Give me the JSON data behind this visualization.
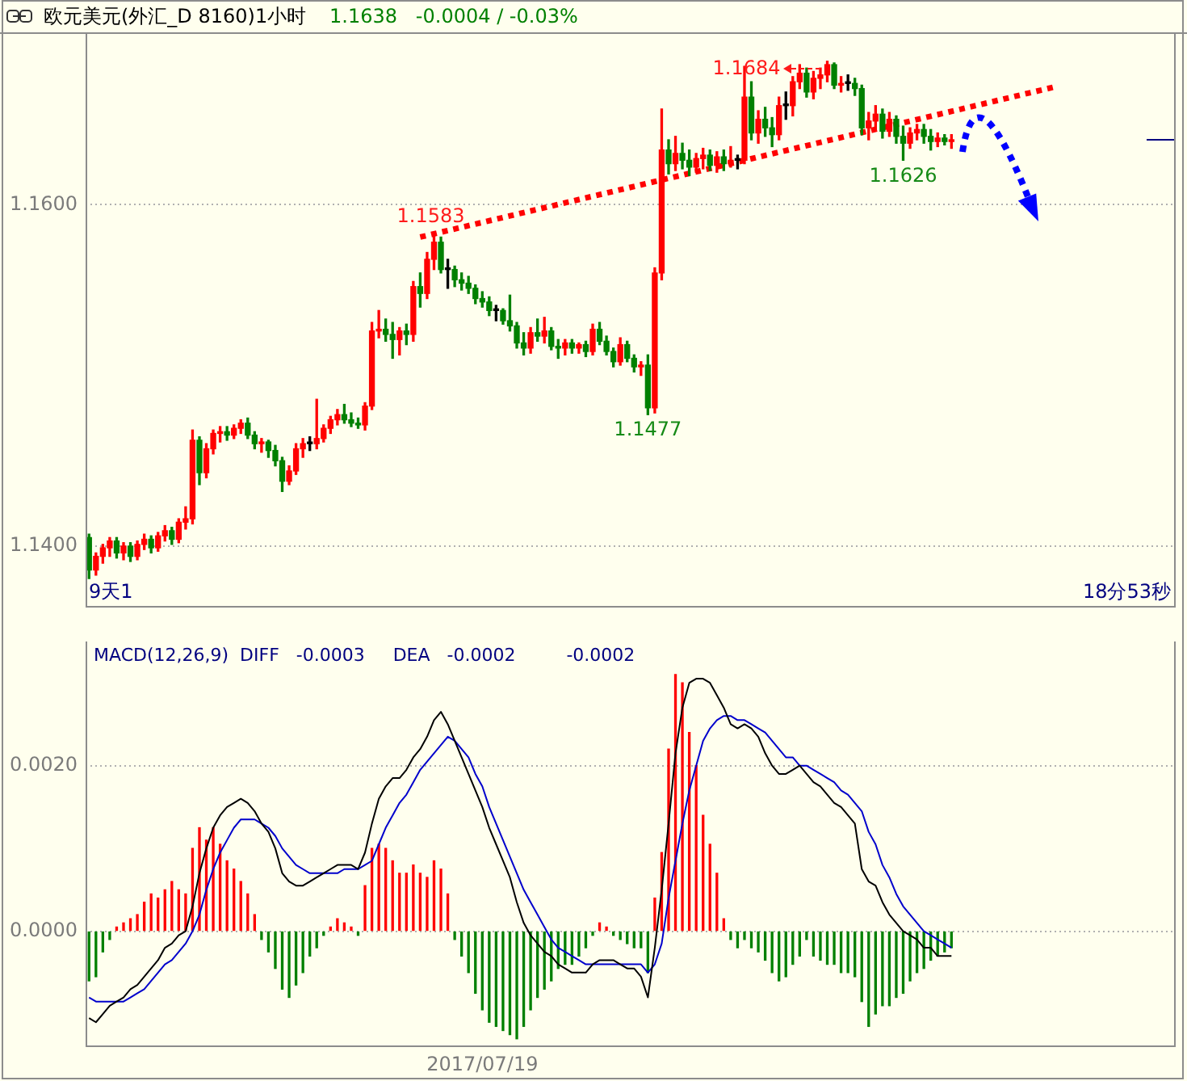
{
  "chart_data": [
    {
      "type": "candlestick",
      "title": "欧元美元(外汇_D 8160)1小时",
      "subtitle": "1.1638   -0.0004 / -0.03%",
      "categories": [
        null,
        null,
        null,
        null,
        null,
        null,
        null,
        null,
        null,
        null,
        null,
        null,
        null,
        null,
        null,
        null,
        null,
        null,
        null,
        null,
        null,
        null,
        null,
        null,
        null,
        null,
        null,
        null,
        null,
        null,
        null,
        null,
        null,
        null,
        null,
        null,
        null,
        null,
        null,
        null,
        null,
        null,
        null,
        null,
        null,
        null,
        null,
        null,
        null,
        null,
        null,
        null,
        null,
        null,
        null,
        null,
        null,
        null,
        null,
        null,
        null,
        null,
        null,
        null,
        null,
        null,
        null,
        null,
        null,
        null,
        null,
        null,
        null,
        null,
        null,
        null,
        null,
        null,
        null,
        null,
        null,
        null,
        null,
        null,
        null,
        null,
        null,
        null,
        null,
        null,
        null,
        null,
        null,
        null,
        null,
        null,
        null,
        null,
        null,
        null,
        null,
        null,
        null,
        null,
        null,
        null,
        null,
        null,
        null,
        null,
        null,
        null,
        null,
        null,
        null,
        null,
        null,
        null,
        null,
        null,
        null,
        null,
        null,
        null,
        null,
        null,
        null,
        null,
        null,
        null,
        null,
        null,
        null,
        null,
        null,
        null,
        null,
        null,
        null,
        null,
        null,
        null,
        null,
        null,
        null,
        null,
        null,
        null,
        null,
        null,
        null,
        null,
        null,
        null,
        null,
        null,
        null,
        null
      ],
      "ohlc": [
        [
          1.1405,
          1.1407,
          1.1381,
          1.1386
        ],
        [
          1.1386,
          1.1396,
          1.1383,
          1.1394
        ],
        [
          1.1394,
          1.1401,
          1.139,
          1.1399
        ],
        [
          1.1399,
          1.1405,
          1.1394,
          1.1403
        ],
        [
          1.1403,
          1.1405,
          1.1393,
          1.1396
        ],
        [
          1.1396,
          1.1402,
          1.1392,
          1.14
        ],
        [
          1.14,
          1.1402,
          1.1391,
          1.1394
        ],
        [
          1.1394,
          1.1403,
          1.1392,
          1.1401
        ],
        [
          1.1401,
          1.1407,
          1.1398,
          1.1404
        ],
        [
          1.1404,
          1.1406,
          1.1396,
          1.1399
        ],
        [
          1.1399,
          1.1408,
          1.1397,
          1.1406
        ],
        [
          1.1406,
          1.1412,
          1.1403,
          1.1409
        ],
        [
          1.1409,
          1.1411,
          1.1401,
          1.1404
        ],
        [
          1.1404,
          1.1416,
          1.1402,
          1.1414
        ],
        [
          1.1414,
          1.1423,
          1.141,
          1.1416
        ],
        [
          1.1416,
          1.1468,
          1.1413,
          1.1462
        ],
        [
          1.1462,
          1.1464,
          1.1436,
          1.1443
        ],
        [
          1.1443,
          1.146,
          1.144,
          1.1457
        ],
        [
          1.1457,
          1.1468,
          1.1454,
          1.1466
        ],
        [
          1.1466,
          1.147,
          1.1461,
          1.1467
        ],
        [
          1.1467,
          1.147,
          1.1462,
          1.1465
        ],
        [
          1.1465,
          1.1471,
          1.1463,
          1.1469
        ],
        [
          1.1469,
          1.1474,
          1.1466,
          1.1472
        ],
        [
          1.1472,
          1.1475,
          1.1463,
          1.1465
        ],
        [
          1.1465,
          1.1467,
          1.1457,
          1.146
        ],
        [
          1.146,
          1.1463,
          1.1455,
          1.1461
        ],
        [
          1.1461,
          1.1462,
          1.1452,
          1.1456
        ],
        [
          1.1456,
          1.1459,
          1.1447,
          1.145
        ],
        [
          1.145,
          1.1452,
          1.1432,
          1.1438
        ],
        [
          1.1438,
          1.1447,
          1.1436,
          1.1444
        ],
        [
          1.1444,
          1.146,
          1.1442,
          1.1457
        ],
        [
          1.1457,
          1.1463,
          1.1452,
          1.146
        ],
        [
          1.146,
          1.1464,
          1.1456,
          1.146
        ],
        [
          1.146,
          1.1486,
          1.1457,
          1.1463
        ],
        [
          1.1463,
          1.1471,
          1.1461,
          1.1469
        ],
        [
          1.1469,
          1.1476,
          1.1466,
          1.1474
        ],
        [
          1.1474,
          1.148,
          1.1471,
          1.1477
        ],
        [
          1.1477,
          1.1483,
          1.1472,
          1.1474
        ],
        [
          1.1474,
          1.1478,
          1.147,
          1.1472
        ],
        [
          1.1472,
          1.1475,
          1.1469,
          1.1471
        ],
        [
          1.1471,
          1.1484,
          1.1468,
          1.1482
        ],
        [
          1.1482,
          1.1531,
          1.148,
          1.1526
        ],
        [
          1.1526,
          1.1538,
          1.1522,
          1.1527
        ],
        [
          1.1527,
          1.1533,
          1.152,
          1.1524
        ],
        [
          1.1524,
          1.1531,
          1.151,
          1.1521
        ],
        [
          1.1521,
          1.1528,
          1.1512,
          1.1526
        ],
        [
          1.1526,
          1.153,
          1.1518,
          1.1524
        ],
        [
          1.1524,
          1.1555,
          1.152,
          1.1552
        ],
        [
          1.1552,
          1.156,
          1.154,
          1.1548
        ],
        [
          1.1548,
          1.1572,
          1.1545,
          1.1568
        ],
        [
          1.1568,
          1.1583,
          1.1562,
          1.1578
        ],
        [
          1.1578,
          1.1581,
          1.156,
          1.1562
        ],
        [
          1.1562,
          1.1568,
          1.1551,
          1.1562
        ],
        [
          1.1562,
          1.1564,
          1.1552,
          1.1556
        ],
        [
          1.1556,
          1.156,
          1.155,
          1.1554
        ],
        [
          1.1554,
          1.1558,
          1.1548,
          1.1551
        ],
        [
          1.1551,
          1.1553,
          1.1542,
          1.1545
        ],
        [
          1.1545,
          1.1549,
          1.154,
          1.1543
        ],
        [
          1.1543,
          1.1546,
          1.1535,
          1.1538
        ],
        [
          1.1538,
          1.1541,
          1.1532,
          1.1538
        ],
        [
          1.1538,
          1.1539,
          1.153,
          1.1532
        ],
        [
          1.1532,
          1.1547,
          1.1526,
          1.1529
        ],
        [
          1.1529,
          1.1531,
          1.1516,
          1.1519
        ],
        [
          1.1519,
          1.1525,
          1.1512,
          1.1516
        ],
        [
          1.1516,
          1.1528,
          1.1513,
          1.1525
        ],
        [
          1.1525,
          1.1533,
          1.152,
          1.1523
        ],
        [
          1.1523,
          1.1534,
          1.1519,
          1.1526
        ],
        [
          1.1526,
          1.1528,
          1.1515,
          1.1517
        ],
        [
          1.1517,
          1.1521,
          1.151,
          1.1516
        ],
        [
          1.1516,
          1.1521,
          1.1512,
          1.1519
        ],
        [
          1.1519,
          1.1521,
          1.1513,
          1.1516
        ],
        [
          1.1516,
          1.1519,
          1.1513,
          1.1518
        ],
        [
          1.1518,
          1.152,
          1.1511,
          1.1514
        ],
        [
          1.1514,
          1.153,
          1.1512,
          1.1527
        ],
        [
          1.1527,
          1.1531,
          1.1518,
          1.152
        ],
        [
          1.152,
          1.1523,
          1.1512,
          1.1514
        ],
        [
          1.1514,
          1.1516,
          1.1505,
          1.1508
        ],
        [
          1.1508,
          1.1522,
          1.1506,
          1.1518
        ],
        [
          1.1518,
          1.152,
          1.1508,
          1.151
        ],
        [
          1.151,
          1.1512,
          1.1502,
          1.1505
        ],
        [
          1.1505,
          1.1508,
          1.15,
          1.1506
        ],
        [
          1.1506,
          1.1512,
          1.1477,
          1.1481
        ],
        [
          1.1481,
          1.1563,
          1.1478,
          1.156
        ],
        [
          1.156,
          1.1656,
          1.1556,
          1.1632
        ],
        [
          1.1632,
          1.1638,
          1.1618,
          1.1624
        ],
        [
          1.1624,
          1.164,
          1.162,
          1.163
        ],
        [
          1.163,
          1.1636,
          1.1621,
          1.1626
        ],
        [
          1.1626,
          1.1632,
          1.1617,
          1.1622
        ],
        [
          1.1622,
          1.163,
          1.1619,
          1.1627
        ],
        [
          1.1627,
          1.1633,
          1.1621,
          1.1629
        ],
        [
          1.1629,
          1.1632,
          1.162,
          1.1623
        ],
        [
          1.1623,
          1.1631,
          1.1619,
          1.1628
        ],
        [
          1.1628,
          1.1632,
          1.162,
          1.1624
        ],
        [
          1.1624,
          1.1634,
          1.1622,
          1.1626
        ],
        [
          1.1626,
          1.1629,
          1.1621,
          1.1626
        ],
        [
          1.1626,
          1.1681,
          1.1624,
          1.1663
        ],
        [
          1.1663,
          1.1672,
          1.1638,
          1.1642
        ],
        [
          1.1642,
          1.1655,
          1.1636,
          1.165
        ],
        [
          1.165,
          1.1657,
          1.164,
          1.1645
        ],
        [
          1.1645,
          1.1651,
          1.1634,
          1.1641
        ],
        [
          1.1641,
          1.1663,
          1.1638,
          1.1658
        ],
        [
          1.1658,
          1.1666,
          1.165,
          1.1658
        ],
        [
          1.1658,
          1.1675,
          1.1652,
          1.1672
        ],
        [
          1.1672,
          1.1682,
          1.1668,
          1.1677
        ],
        [
          1.1677,
          1.168,
          1.1663,
          1.1666
        ],
        [
          1.1666,
          1.1678,
          1.1662,
          1.1674
        ],
        [
          1.1674,
          1.168,
          1.1668,
          1.1676
        ],
        [
          1.1676,
          1.1684,
          1.1672,
          1.1682
        ],
        [
          1.1682,
          1.1683,
          1.1668,
          1.167
        ],
        [
          1.167,
          1.1675,
          1.1666,
          1.1671
        ],
        [
          1.1671,
          1.1676,
          1.1667,
          1.1671
        ],
        [
          1.1671,
          1.1674,
          1.1664,
          1.1668
        ],
        [
          1.1668,
          1.167,
          1.1641,
          1.1645
        ],
        [
          1.1645,
          1.1654,
          1.1638,
          1.1649
        ],
        [
          1.1649,
          1.1658,
          1.1644,
          1.1653
        ],
        [
          1.1653,
          1.1656,
          1.1639,
          1.1643
        ],
        [
          1.1643,
          1.1654,
          1.164,
          1.165
        ],
        [
          1.165,
          1.1652,
          1.1636,
          1.164
        ],
        [
          1.164,
          1.1646,
          1.1626,
          1.1636
        ],
        [
          1.1636,
          1.1645,
          1.1633,
          1.1642
        ],
        [
          1.1642,
          1.1647,
          1.1638,
          1.1644
        ],
        [
          1.1644,
          1.1647,
          1.1636,
          1.164
        ],
        [
          1.164,
          1.1644,
          1.1632,
          1.1637
        ],
        [
          1.1637,
          1.1642,
          1.1634,
          1.1639
        ],
        [
          1.1639,
          1.1641,
          1.1635,
          1.1637
        ],
        [
          1.1637,
          1.1641,
          1.1633,
          1.1638
        ],
        null,
        null,
        null,
        null,
        null,
        null,
        null,
        null,
        null,
        null,
        null,
        null,
        null,
        null,
        null,
        null,
        null,
        null,
        null,
        null,
        null,
        null,
        null,
        null,
        null,
        null,
        null,
        null,
        null,
        null,
        null,
        null
      ],
      "colors": [
        "#008000",
        "#ff0000",
        "#ff0000",
        "#ff0000",
        "#008000",
        "#ff0000",
        "#008000",
        "#ff0000",
        "#ff0000",
        "#008000",
        "#ff0000",
        "#ff0000",
        "#008000",
        "#ff0000",
        "#ff0000",
        "#ff0000",
        "#008000",
        "#ff0000",
        "#ff0000",
        "#ff0000",
        "#008000",
        "#ff0000",
        "#ff0000",
        "#008000",
        "#008000",
        "#ff0000",
        "#008000",
        "#008000",
        "#008000",
        "#ff0000",
        "#ff0000",
        "#ff0000",
        "#000000",
        "#ff0000",
        "#ff0000",
        "#ff0000",
        "#ff0000",
        "#008000",
        "#008000",
        "#008000",
        "#ff0000",
        "#ff0000",
        "#ff0000",
        "#008000",
        "#008000",
        "#ff0000",
        "#008000",
        "#ff0000",
        "#008000",
        "#ff0000",
        "#ff0000",
        "#008000",
        "#000000",
        "#008000",
        "#008000",
        "#008000",
        "#008000",
        "#008000",
        "#008000",
        "#000000",
        "#008000",
        "#008000",
        "#008000",
        "#008000",
        "#ff0000",
        "#008000",
        "#ff0000",
        "#008000",
        "#008000",
        "#ff0000",
        "#008000",
        "#ff0000",
        "#008000",
        "#ff0000",
        "#008000",
        "#008000",
        "#008000",
        "#ff0000",
        "#008000",
        "#008000",
        "#ff0000",
        "#008000",
        "#ff0000",
        "#ff0000",
        "#008000",
        "#ff0000",
        "#008000",
        "#008000",
        "#ff0000",
        "#ff0000",
        "#008000",
        "#ff0000",
        "#008000",
        "#ff0000",
        "#000000",
        "#ff0000",
        "#008000",
        "#ff0000",
        "#008000",
        "#008000",
        "#ff0000",
        "#000000",
        "#ff0000",
        "#ff0000",
        "#008000",
        "#ff0000",
        "#ff0000",
        "#ff0000",
        "#008000",
        "#ff0000",
        "#000000",
        "#008000",
        "#008000",
        "#ff0000",
        "#ff0000",
        "#008000",
        "#ff0000",
        "#008000",
        "#008000",
        "#ff0000",
        "#ff0000",
        "#008000",
        "#008000",
        "#ff0000",
        "#008000",
        "#ff0000",
        null,
        null,
        null,
        null,
        null,
        null,
        null,
        null,
        null,
        null,
        null,
        null,
        null,
        null,
        null,
        null,
        null,
        null,
        null,
        null,
        null,
        null,
        null,
        null,
        null,
        null,
        null,
        null,
        null,
        null,
        null,
        null
      ],
      "series": [
        {
          "type": "line",
          "color": "#ff0000",
          "line_style": "dotted",
          "values": [
            null,
            null,
            null,
            null,
            null,
            null,
            null,
            null,
            null,
            null,
            null,
            null,
            null,
            null,
            null,
            null,
            null,
            null,
            null,
            null,
            null,
            null,
            null,
            null,
            null,
            null,
            null,
            null,
            null,
            null,
            null,
            null,
            null,
            null,
            null,
            null,
            null,
            null,
            null,
            null,
            null,
            null,
            null,
            null,
            null,
            null,
            null,
            null,
            1.1581,
            null,
            null,
            null,
            null,
            null,
            null,
            null,
            null,
            null,
            null,
            null,
            null,
            null,
            null,
            null,
            null,
            null,
            null,
            null,
            null,
            null,
            null,
            null,
            null,
            null,
            null,
            null,
            null,
            null,
            null,
            null,
            null,
            null,
            null,
            null,
            null,
            null,
            null,
            null,
            null,
            null,
            null,
            null,
            null,
            null,
            null,
            null,
            null,
            null,
            null,
            null,
            null,
            null,
            null,
            null,
            null,
            null,
            null,
            null,
            null,
            null,
            null,
            null,
            null,
            null,
            null,
            null,
            null,
            null,
            null,
            null,
            null,
            null,
            null,
            null,
            null,
            null,
            null,
            null,
            null,
            null,
            null,
            null,
            null,
            null,
            null,
            null,
            null,
            null,
            null,
            null,
            1.1669,
            null,
            null,
            null,
            null,
            null,
            null,
            null,
            null,
            null,
            null,
            null,
            null,
            null,
            null,
            null,
            null,
            null
          ]
        }
      ],
      "ylim": [
        1.1364,
        1.17
      ],
      "yticks": [
        {
          "value": 1.16,
          "label": "1.1600"
        },
        {
          "value": 1.14,
          "label": "1.1400"
        }
      ],
      "grid": "y",
      "tick_labels": "y",
      "annotations": [
        {
          "text": "1.1583",
          "y": 1.1583
        },
        {
          "text": "1.1684",
          "y": 1.1684
        },
        {
          "text": "1.1477",
          "y": 1.1477
        },
        {
          "text": "1.1626",
          "y": 1.1626
        },
        "9天1",
        "18分53秒"
      ]
    },
    {
      "type": "bar",
      "title": "MACD(12,26,9)  DIFF   -0.0003     DEA   -0.0002         -0.0002",
      "categories": [
        null,
        null,
        null,
        null,
        null,
        null,
        null,
        null,
        null,
        null,
        null,
        null,
        null,
        null,
        null,
        null,
        null,
        null,
        null,
        null,
        null,
        null,
        null,
        null,
        null,
        null,
        null,
        null,
        null,
        null,
        null,
        null,
        null,
        null,
        null,
        null,
        null,
        null,
        null,
        null,
        null,
        null,
        null,
        null,
        null,
        null,
        null,
        null,
        null,
        null,
        null,
        null,
        null,
        null,
        null,
        null,
        null,
        "2017/07/19",
        null,
        null,
        null,
        null,
        null,
        null,
        null,
        null,
        null,
        null,
        null,
        null,
        null,
        null,
        null,
        null,
        null,
        null,
        null,
        null,
        null,
        null,
        null,
        null,
        null,
        null,
        null,
        null,
        null,
        null,
        null,
        null,
        null,
        null,
        null,
        null,
        null,
        null,
        null,
        null,
        null,
        null,
        null,
        null,
        null,
        null,
        null,
        null,
        null,
        null,
        null,
        null,
        null,
        null,
        null,
        null,
        null,
        null,
        null,
        null,
        null,
        null,
        null,
        null,
        null,
        null,
        null,
        null,
        null,
        null,
        null,
        null,
        null,
        null,
        null,
        null,
        null,
        null,
        null,
        null,
        null,
        null,
        null,
        null,
        null,
        null,
        null,
        null,
        null,
        null,
        null,
        null,
        null,
        null,
        null,
        null,
        null,
        null,
        null,
        null
      ],
      "series": [
        {
          "type": "bar",
          "values": [
            -0.0006,
            -0.00055,
            -0.00025,
            -0.0001,
            5e-05,
            0.0001,
            0.00015,
            0.0002,
            0.00035,
            0.00045,
            0.0004,
            0.0005,
            0.0006,
            0.0005,
            0.00045,
            0.001,
            0.00125,
            0.0011,
            0.00125,
            0.00105,
            0.00085,
            0.00075,
            0.0006,
            0.00045,
            0.0002,
            -0.0001,
            -0.00025,
            -0.00045,
            -0.0007,
            -0.0008,
            -0.00065,
            -0.0005,
            -0.0003,
            -0.0002,
            -5e-05,
            5e-05,
            0.00015,
            0.0001,
            5e-05,
            -5e-05,
            0.00055,
            0.001,
            0.00105,
            0.001,
            0.00085,
            0.0007,
            0.0007,
            0.0008,
            0.0007,
            0.00065,
            0.00085,
            0.00075,
            0.00045,
            -0.0001,
            -0.0003,
            -0.0005,
            -0.00075,
            -0.00095,
            -0.0011,
            -0.00115,
            -0.0012,
            -0.00125,
            -0.0013,
            -0.00115,
            -0.00095,
            -0.0008,
            -0.0007,
            -0.0006,
            -0.00045,
            -0.0004,
            -0.0004,
            -0.0003,
            -0.0002,
            -5e-05,
            0.0001,
            5e-05,
            -5e-05,
            -0.0001,
            -0.00015,
            -0.0002,
            -0.0002,
            -0.0005,
            0.0004,
            0.00095,
            0.0022,
            0.0031,
            0.003,
            0.0024,
            0.002,
            0.0014,
            0.00105,
            0.0007,
            0.00015,
            -0.0001,
            -0.0002,
            -0.0001,
            -0.0002,
            -0.00025,
            -0.00035,
            -0.0005,
            -0.0006,
            -0.00055,
            -0.0004,
            -0.0003,
            -0.0001,
            -0.0003,
            -0.00035,
            -0.0004,
            -0.0004,
            -0.0005,
            -0.0005,
            -0.00055,
            -0.00085,
            -0.00115,
            -0.001,
            -0.0009,
            -0.0009,
            -0.0008,
            -0.00075,
            -0.0006,
            -0.0005,
            -0.00045,
            -0.00035,
            -0.0003,
            -0.00025,
            -0.0002,
            null,
            null,
            null,
            null,
            null,
            null,
            null,
            null,
            null,
            null,
            null,
            null,
            null,
            null,
            null,
            null,
            null,
            null,
            null,
            null,
            null,
            null,
            null,
            null,
            null,
            null,
            null,
            null,
            null,
            null,
            null,
            null
          ],
          "colors": [
            "#008000",
            "#008000",
            "#008000",
            "#008000",
            "#ff0000",
            "#ff0000",
            "#ff0000",
            "#ff0000",
            "#ff0000",
            "#ff0000",
            "#ff0000",
            "#ff0000",
            "#ff0000",
            "#ff0000",
            "#ff0000",
            "#ff0000",
            "#ff0000",
            "#ff0000",
            "#ff0000",
            "#ff0000",
            "#ff0000",
            "#ff0000",
            "#ff0000",
            "#ff0000",
            "#ff0000",
            "#008000",
            "#008000",
            "#008000",
            "#008000",
            "#008000",
            "#008000",
            "#008000",
            "#008000",
            "#008000",
            "#008000",
            "#ff0000",
            "#ff0000",
            "#ff0000",
            "#ff0000",
            "#008000",
            "#ff0000",
            "#ff0000",
            "#ff0000",
            "#ff0000",
            "#ff0000",
            "#ff0000",
            "#ff0000",
            "#ff0000",
            "#ff0000",
            "#ff0000",
            "#ff0000",
            "#ff0000",
            "#ff0000",
            "#008000",
            "#008000",
            "#008000",
            "#008000",
            "#008000",
            "#008000",
            "#008000",
            "#008000",
            "#008000",
            "#008000",
            "#008000",
            "#008000",
            "#008000",
            "#008000",
            "#008000",
            "#008000",
            "#008000",
            "#008000",
            "#008000",
            "#008000",
            "#008000",
            "#ff0000",
            "#ff0000",
            "#008000",
            "#008000",
            "#008000",
            "#008000",
            "#008000",
            "#008000",
            "#ff0000",
            "#ff0000",
            "#ff0000",
            "#ff0000",
            "#ff0000",
            "#ff0000",
            "#ff0000",
            "#ff0000",
            "#ff0000",
            "#ff0000",
            "#ff0000",
            "#008000",
            "#008000",
            "#008000",
            "#008000",
            "#008000",
            "#008000",
            "#008000",
            "#008000",
            "#008000",
            "#008000",
            "#008000",
            "#008000",
            "#008000",
            "#008000",
            "#008000",
            "#008000",
            "#008000",
            "#008000",
            "#008000",
            "#008000",
            "#008000",
            "#008000",
            "#008000",
            "#008000",
            "#008000",
            "#008000",
            "#008000",
            "#008000",
            "#008000",
            "#008000",
            "#008000",
            "#008000",
            "#008000",
            null,
            null,
            null,
            null,
            null,
            null,
            null,
            null,
            null,
            null,
            null,
            null,
            null,
            null,
            null,
            null,
            null,
            null,
            null,
            null,
            null,
            null,
            null,
            null,
            null,
            null,
            null,
            null,
            null,
            null,
            null,
            null
          ]
        },
        {
          "type": "line",
          "color": "#000000",
          "values": [
            -0.00105,
            -0.0011,
            -0.001,
            -0.0009,
            -0.00085,
            -0.0008,
            -0.0007,
            -0.00065,
            -0.00055,
            -0.00045,
            -0.00035,
            -0.0002,
            -0.00015,
            -5e-05,
            0,
            0.0003,
            0.0007,
            0.001,
            0.00125,
            0.0014,
            0.0015,
            0.00155,
            0.0016,
            0.00155,
            0.00145,
            0.0013,
            0.0012,
            0.001,
            0.0007,
            0.0006,
            0.00055,
            0.00055,
            0.0006,
            0.00065,
            0.0007,
            0.00075,
            0.0008,
            0.0008,
            0.0008,
            0.00075,
            0.00095,
            0.0013,
            0.0016,
            0.00175,
            0.00185,
            0.00185,
            0.00195,
            0.0021,
            0.0022,
            0.00235,
            0.00255,
            0.00265,
            0.0025,
            0.0023,
            0.0021,
            0.0019,
            0.0017,
            0.0015,
            0.00125,
            0.00105,
            0.00085,
            0.00065,
            0.00035,
            0.0001,
            -5e-05,
            -0.00015,
            -0.00025,
            -0.0003,
            -0.0004,
            -0.00045,
            -0.0005,
            -0.0005,
            -0.0005,
            -0.0004,
            -0.00035,
            -0.00035,
            -0.00035,
            -0.0004,
            -0.00045,
            -0.00045,
            -0.00055,
            -0.0008,
            -0.0002,
            0.0005,
            0.0013,
            0.00215,
            0.0027,
            0.003,
            0.00305,
            0.00305,
            0.003,
            0.00285,
            0.0027,
            0.0025,
            0.00245,
            0.0025,
            0.00245,
            0.00235,
            0.00215,
            0.002,
            0.0019,
            0.0019,
            0.00195,
            0.002,
            0.0019,
            0.0018,
            0.00175,
            0.00165,
            0.00155,
            0.0015,
            0.0014,
            0.0013,
            0.00075,
            0.0006,
            0.00055,
            0.00035,
            0.0002,
            0.0001,
            0,
            -5e-05,
            -0.0001,
            -0.0002,
            -0.0002,
            -0.0003,
            -0.0003,
            -0.0003,
            null,
            null,
            null,
            null,
            null,
            null,
            null,
            null,
            null,
            null,
            null,
            null,
            null,
            null,
            null,
            null,
            null,
            null,
            null,
            null,
            null,
            null,
            null,
            null,
            null,
            null,
            null,
            null,
            null,
            null,
            null,
            null
          ]
        },
        {
          "type": "line",
          "color": "#0000cc",
          "values": [
            -0.0008,
            -0.00085,
            -0.00085,
            -0.00085,
            -0.00085,
            -0.00085,
            -0.0008,
            -0.00075,
            -0.0007,
            -0.0006,
            -0.0005,
            -0.0004,
            -0.00035,
            -0.00025,
            -0.00015,
            0,
            0.0002,
            0.0005,
            0.00075,
            0.00095,
            0.0011,
            0.00125,
            0.00135,
            0.00135,
            0.00135,
            0.0013,
            0.00125,
            0.00115,
            0.001,
            0.0009,
            0.0008,
            0.00075,
            0.0007,
            0.0007,
            0.0007,
            0.0007,
            0.0007,
            0.00075,
            0.00075,
            0.00075,
            0.0008,
            0.00085,
            0.00105,
            0.00125,
            0.0014,
            0.00155,
            0.00165,
            0.0018,
            0.00195,
            0.00205,
            0.00215,
            0.00225,
            0.00235,
            0.0023,
            0.0022,
            0.0021,
            0.0019,
            0.00175,
            0.0015,
            0.0013,
            0.0011,
            0.0009,
            0.0007,
            0.0005,
            0.00035,
            0.0002,
            5e-05,
            -0.0001,
            -0.0002,
            -0.00025,
            -0.0003,
            -0.00035,
            -0.0004,
            -0.0004,
            -0.0004,
            -0.0004,
            -0.0004,
            -0.0004,
            -0.0004,
            -0.0004,
            -0.0004,
            -0.0005,
            -0.0004,
            -0.00015,
            0.0004,
            0.00085,
            0.0013,
            0.0017,
            0.002,
            0.0023,
            0.00245,
            0.00255,
            0.0026,
            0.0026,
            0.00255,
            0.00255,
            0.0025,
            0.00245,
            0.0024,
            0.0023,
            0.0022,
            0.0021,
            0.0021,
            0.002,
            0.002,
            0.00195,
            0.0019,
            0.00185,
            0.0018,
            0.0017,
            0.00165,
            0.00155,
            0.00145,
            0.0012,
            0.00105,
            0.0008,
            0.00065,
            0.00045,
            0.0003,
            0.0002,
            0.0001,
            0,
            -5e-05,
            -0.0001,
            -0.00015,
            -0.0002,
            null,
            null,
            null,
            null,
            null,
            null,
            null,
            null,
            null,
            null,
            null,
            null,
            null,
            null,
            null,
            null,
            null,
            null,
            null,
            null,
            null,
            null,
            null,
            null,
            null,
            null,
            null,
            null,
            null,
            null,
            null,
            null
          ]
        }
      ],
      "ylim": [
        -0.0014,
        0.0035
      ],
      "yticks": [
        {
          "value": 0.002,
          "label": "0.0020"
        },
        {
          "value": 0,
          "label": "0.0000"
        }
      ],
      "grid": "y"
    }
  ]
}
